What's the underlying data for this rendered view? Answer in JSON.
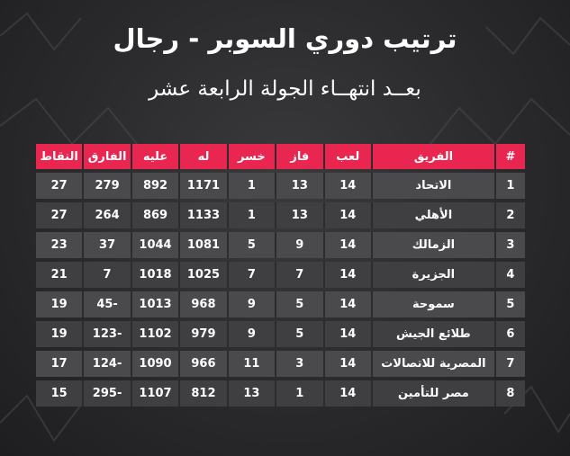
{
  "header": {
    "title": "ترتيب دوري السوبر - رجال",
    "subtitle": "بعــد انتهــاء الجولة الرابعة عشر"
  },
  "table": {
    "columns": [
      "#",
      "الفريق",
      "لعب",
      "فاز",
      "خسر",
      "له",
      "عليه",
      "الفارق",
      "النقاط"
    ],
    "rows": [
      [
        "1",
        "الاتحاد",
        "14",
        "13",
        "1",
        "1171",
        "892",
        "279",
        "27"
      ],
      [
        "2",
        "الأهلي",
        "14",
        "13",
        "1",
        "1133",
        "869",
        "264",
        "27"
      ],
      [
        "3",
        "الزمالك",
        "14",
        "9",
        "5",
        "1081",
        "1044",
        "37",
        "23"
      ],
      [
        "4",
        "الجزيرة",
        "14",
        "7",
        "7",
        "1025",
        "1018",
        "7",
        "21"
      ],
      [
        "5",
        "سموحة",
        "14",
        "5",
        "9",
        "968",
        "1013",
        "-45",
        "19"
      ],
      [
        "6",
        "طلائع الجيش",
        "14",
        "5",
        "9",
        "979",
        "1102",
        "-123",
        "19"
      ],
      [
        "7",
        "المصرية للاتصالات",
        "14",
        "3",
        "11",
        "966",
        "1090",
        "-124",
        "17"
      ],
      [
        "8",
        "مصر للتأمين",
        "14",
        "1",
        "13",
        "812",
        "1107",
        "-295",
        "15"
      ]
    ]
  },
  "colors": {
    "header_bg": "#e8264f",
    "row_bg": "#4a4a4c",
    "page_bg": "#2a2a2c"
  }
}
